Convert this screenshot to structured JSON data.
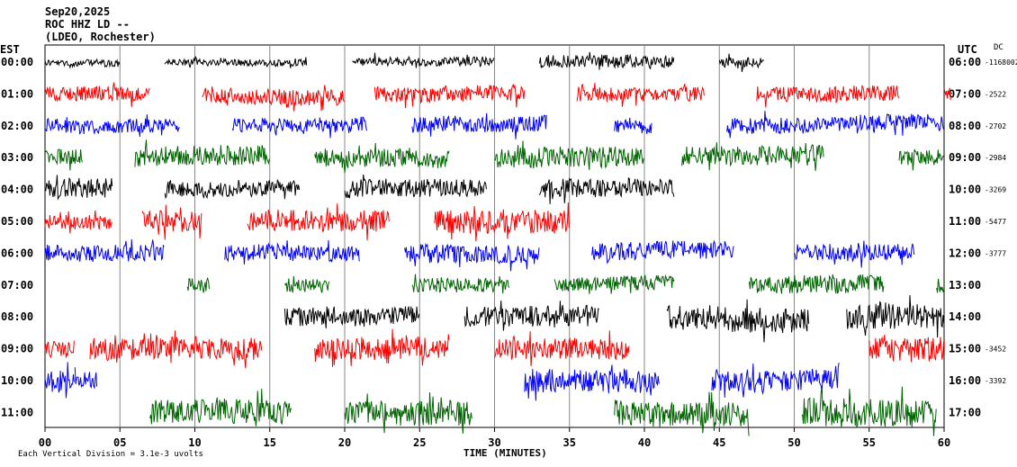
{
  "header": {
    "date": "Sep20,2025",
    "station": "ROC HHZ LD --",
    "network": "(LDEO, Rochester)"
  },
  "left_tz": "EST",
  "right_tz": "UTC",
  "dc_label": "DC",
  "footer": {
    "scale_note": "Each Vertical Division = 3.1e-3 uvolts",
    "x_axis_title": "TIME (MINUTES)"
  },
  "chart_data": {
    "type": "line",
    "title": "ROC HHZ LD --",
    "xlabel": "TIME (MINUTES)",
    "xlim": [
      0,
      60
    ],
    "x_ticks": [
      "00",
      "05",
      "10",
      "15",
      "20",
      "25",
      "30",
      "35",
      "40",
      "45",
      "50",
      "55",
      "60"
    ],
    "rows": [
      {
        "est": "00:00",
        "utc": "06:00",
        "dc": "-1168002",
        "color": "#000000"
      },
      {
        "est": "01:00",
        "utc": "07:00",
        "dc": "-2522",
        "color": "#ff0000"
      },
      {
        "est": "02:00",
        "utc": "08:00",
        "dc": "-2702",
        "color": "#0000ff"
      },
      {
        "est": "03:00",
        "utc": "09:00",
        "dc": "-2984",
        "color": "#006400"
      },
      {
        "est": "04:00",
        "utc": "10:00",
        "dc": "-3269",
        "color": "#000000"
      },
      {
        "est": "05:00",
        "utc": "11:00",
        "dc": "-5477",
        "color": "#ff0000"
      },
      {
        "est": "06:00",
        "utc": "12:00",
        "dc": "-3777",
        "color": "#0000ff"
      },
      {
        "est": "07:00",
        "utc": "13:00",
        "dc": "",
        "color": "#006400"
      },
      {
        "est": "08:00",
        "utc": "14:00",
        "dc": "",
        "color": "#000000"
      },
      {
        "est": "09:00",
        "utc": "15:00",
        "dc": "-3452",
        "color": "#ff0000"
      },
      {
        "est": "10:00",
        "utc": "16:00",
        "dc": "-3392",
        "color": "#0000ff"
      },
      {
        "est": "11:00",
        "utc": "17:00",
        "dc": "",
        "color": "#006400"
      }
    ],
    "segments": [
      {
        "row": 0,
        "from": 0,
        "to": 5,
        "amp": 4
      },
      {
        "row": 0,
        "from": 8,
        "to": 17.5,
        "amp": 4
      },
      {
        "row": 0,
        "from": 20.5,
        "to": 30,
        "amp": 5
      },
      {
        "row": 0,
        "from": 33,
        "to": 42,
        "amp": 7
      },
      {
        "row": 0,
        "from": 45,
        "to": 48,
        "amp": 6
      },
      {
        "row": 1,
        "from": 0,
        "to": 7,
        "amp": 8
      },
      {
        "row": 1,
        "from": 10.5,
        "to": 20,
        "amp": 9
      },
      {
        "row": 1,
        "from": 22,
        "to": 32,
        "amp": 9
      },
      {
        "row": 1,
        "from": 35.5,
        "to": 44,
        "amp": 8
      },
      {
        "row": 1,
        "from": 47.5,
        "to": 57,
        "amp": 9
      },
      {
        "row": 1,
        "from": 60,
        "to": 60.5,
        "amp": 8
      },
      {
        "row": 2,
        "from": 0,
        "to": 9,
        "amp": 8
      },
      {
        "row": 2,
        "from": 12.5,
        "to": 21.5,
        "amp": 8
      },
      {
        "row": 2,
        "from": 24.5,
        "to": 33.5,
        "amp": 9
      },
      {
        "row": 2,
        "from": 38,
        "to": 40.5,
        "amp": 7
      },
      {
        "row": 2,
        "from": 45.5,
        "to": 60,
        "amp": 9
      },
      {
        "row": 3,
        "from": 0,
        "to": 2.5,
        "amp": 9
      },
      {
        "row": 3,
        "from": 6,
        "to": 15,
        "amp": 11
      },
      {
        "row": 3,
        "from": 18,
        "to": 27,
        "amp": 10
      },
      {
        "row": 3,
        "from": 30,
        "to": 40,
        "amp": 11
      },
      {
        "row": 3,
        "from": 42.5,
        "to": 52,
        "amp": 11
      },
      {
        "row": 3,
        "from": 57,
        "to": 60,
        "amp": 9
      },
      {
        "row": 4,
        "from": 0,
        "to": 4.5,
        "amp": 11
      },
      {
        "row": 4,
        "from": 8,
        "to": 17,
        "amp": 9
      },
      {
        "row": 4,
        "from": 20,
        "to": 29.5,
        "amp": 10
      },
      {
        "row": 4,
        "from": 33,
        "to": 42,
        "amp": 10
      },
      {
        "row": 5,
        "from": 0,
        "to": 4.5,
        "amp": 8
      },
      {
        "row": 5,
        "from": 6.5,
        "to": 10.5,
        "amp": 12
      },
      {
        "row": 5,
        "from": 13.5,
        "to": 23,
        "amp": 12
      },
      {
        "row": 5,
        "from": 26,
        "to": 35,
        "amp": 13
      },
      {
        "row": 6,
        "from": 0,
        "to": 8,
        "amp": 9
      },
      {
        "row": 6,
        "from": 12,
        "to": 21,
        "amp": 9
      },
      {
        "row": 6,
        "from": 24,
        "to": 33,
        "amp": 10
      },
      {
        "row": 6,
        "from": 36.5,
        "to": 46,
        "amp": 10
      },
      {
        "row": 6,
        "from": 50,
        "to": 58,
        "amp": 10
      },
      {
        "row": 7,
        "from": 9.5,
        "to": 11,
        "amp": 8
      },
      {
        "row": 7,
        "from": 16,
        "to": 19,
        "amp": 8
      },
      {
        "row": 7,
        "from": 24.5,
        "to": 31,
        "amp": 8
      },
      {
        "row": 7,
        "from": 34,
        "to": 42,
        "amp": 8
      },
      {
        "row": 7,
        "from": 47,
        "to": 56,
        "amp": 10
      },
      {
        "row": 7,
        "from": 59.5,
        "to": 60,
        "amp": 8
      },
      {
        "row": 8,
        "from": 16,
        "to": 25,
        "amp": 10
      },
      {
        "row": 8,
        "from": 28,
        "to": 37,
        "amp": 12
      },
      {
        "row": 8,
        "from": 41.5,
        "to": 51,
        "amp": 14
      },
      {
        "row": 8,
        "from": 53.5,
        "to": 60,
        "amp": 14
      },
      {
        "row": 9,
        "from": 0,
        "to": 2,
        "amp": 10
      },
      {
        "row": 9,
        "from": 3,
        "to": 14.5,
        "amp": 12
      },
      {
        "row": 9,
        "from": 18,
        "to": 27,
        "amp": 12
      },
      {
        "row": 9,
        "from": 30,
        "to": 39,
        "amp": 12
      },
      {
        "row": 9,
        "from": 55,
        "to": 60,
        "amp": 14
      },
      {
        "row": 10,
        "from": 0,
        "to": 2,
        "amp": 12
      },
      {
        "row": 10,
        "from": 2,
        "to": 3.5,
        "amp": 9
      },
      {
        "row": 10,
        "from": 32,
        "to": 41,
        "amp": 13
      },
      {
        "row": 10,
        "from": 44.5,
        "to": 53,
        "amp": 12
      },
      {
        "row": 11,
        "from": 7,
        "to": 16.5,
        "amp": 14
      },
      {
        "row": 11,
        "from": 20,
        "to": 28.5,
        "amp": 14
      },
      {
        "row": 11,
        "from": 38,
        "to": 47,
        "amp": 14
      },
      {
        "row": 11,
        "from": 50.5,
        "to": 59.5,
        "amp": 16
      }
    ],
    "grid": "vertical lines every 5 minutes",
    "legend": "none"
  }
}
